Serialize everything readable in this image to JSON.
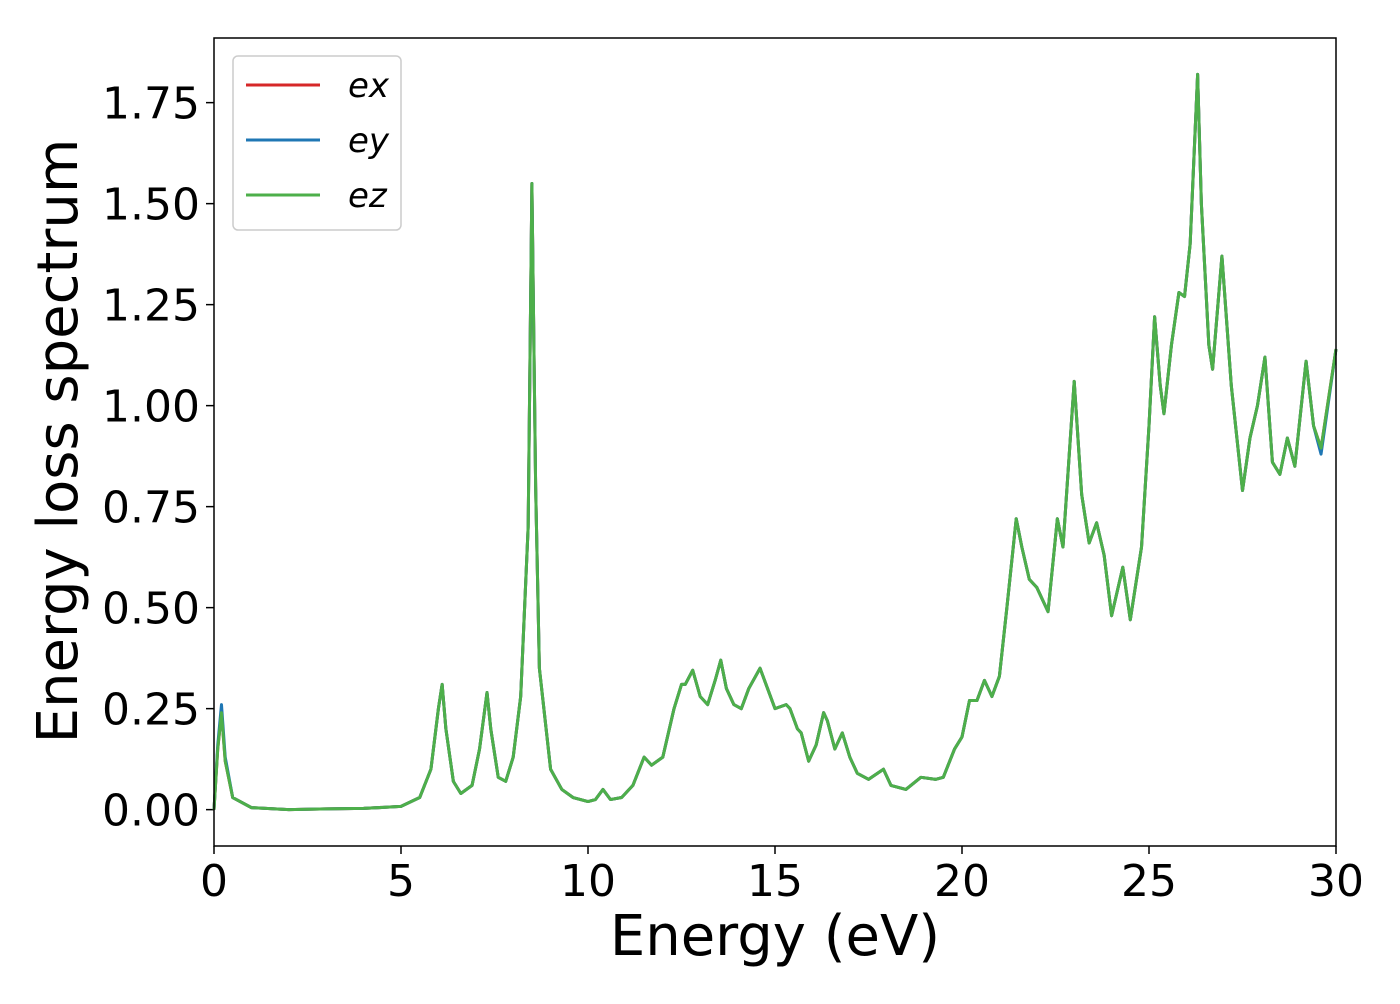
{
  "chart_data": {
    "type": "line",
    "xlabel": "Energy (eV)",
    "ylabel": "Energy loss spectrum",
    "xlim": [
      0,
      30
    ],
    "ylim": [
      -0.09,
      1.91
    ],
    "xticks": [
      0,
      5,
      10,
      15,
      20,
      25,
      30
    ],
    "yticks": [
      {
        "value": 0,
        "label": "0.00"
      },
      {
        "value": 0.25,
        "label": "0.25"
      },
      {
        "value": 0.5,
        "label": "0.50"
      },
      {
        "value": 0.75,
        "label": "0.75"
      },
      {
        "value": 1,
        "label": "1.00"
      },
      {
        "value": 1.25,
        "label": "1.25"
      },
      {
        "value": 1.5,
        "label": "1.50"
      },
      {
        "value": 1.75,
        "label": "1.75"
      }
    ],
    "legend": "upper left",
    "x": [
      0,
      0.1,
      0.2,
      0.3,
      0.5,
      1,
      2,
      3,
      4,
      5,
      5.5,
      5.8,
      6.0,
      6.1,
      6.2,
      6.4,
      6.6,
      6.9,
      7.1,
      7.3,
      7.4,
      7.6,
      7.8,
      8.0,
      8.2,
      8.4,
      8.5,
      8.6,
      8.7,
      9.0,
      9.3,
      9.6,
      10.0,
      10.2,
      10.4,
      10.6,
      10.9,
      11.2,
      11.5,
      11.7,
      12.0,
      12.3,
      12.5,
      12.6,
      12.8,
      13.0,
      13.2,
      13.4,
      13.55,
      13.7,
      13.9,
      14.1,
      14.3,
      14.6,
      14.8,
      15.0,
      15.3,
      15.4,
      15.6,
      15.7,
      15.9,
      16.1,
      16.3,
      16.4,
      16.6,
      16.8,
      17.0,
      17.2,
      17.5,
      17.9,
      18.1,
      18.5,
      18.9,
      19.3,
      19.5,
      19.8,
      20.0,
      20.2,
      20.4,
      20.6,
      20.8,
      21.0,
      21.2,
      21.45,
      21.6,
      21.8,
      22.0,
      22.3,
      22.55,
      22.7,
      23.0,
      23.2,
      23.4,
      23.6,
      23.8,
      24.0,
      24.3,
      24.5,
      24.8,
      25.0,
      25.15,
      25.3,
      25.4,
      25.6,
      25.8,
      25.95,
      26.1,
      26.3,
      26.4,
      26.6,
      26.7,
      26.95,
      27.2,
      27.5,
      27.7,
      27.9,
      28.1,
      28.3,
      28.5,
      28.7,
      28.9,
      29.2,
      29.4,
      29.6,
      30.0
    ],
    "series": [
      {
        "name": "ex",
        "color": "#d62728",
        "values": [
          0,
          0.15,
          0.24,
          0.12,
          0.03,
          0.005,
          0,
          0.002,
          0.003,
          0.008,
          0.03,
          0.1,
          0.25,
          0.31,
          0.2,
          0.07,
          0.04,
          0.06,
          0.15,
          0.29,
          0.2,
          0.08,
          0.07,
          0.13,
          0.28,
          0.7,
          1.55,
          0.8,
          0.35,
          0.1,
          0.05,
          0.03,
          0.02,
          0.025,
          0.05,
          0.025,
          0.03,
          0.06,
          0.13,
          0.11,
          0.13,
          0.25,
          0.31,
          0.31,
          0.345,
          0.28,
          0.26,
          0.32,
          0.37,
          0.3,
          0.26,
          0.25,
          0.3,
          0.35,
          0.3,
          0.25,
          0.26,
          0.25,
          0.2,
          0.19,
          0.12,
          0.16,
          0.24,
          0.22,
          0.15,
          0.19,
          0.13,
          0.09,
          0.075,
          0.1,
          0.06,
          0.05,
          0.08,
          0.075,
          0.08,
          0.15,
          0.18,
          0.27,
          0.27,
          0.32,
          0.28,
          0.33,
          0.5,
          0.72,
          0.65,
          0.57,
          0.55,
          0.49,
          0.72,
          0.65,
          1.06,
          0.78,
          0.66,
          0.71,
          0.63,
          0.48,
          0.6,
          0.47,
          0.65,
          0.95,
          1.22,
          1.05,
          0.98,
          1.15,
          1.28,
          1.27,
          1.4,
          1.82,
          1.5,
          1.15,
          1.09,
          1.37,
          1.05,
          0.79,
          0.92,
          1.0,
          1.12,
          0.86,
          0.83,
          0.92,
          0.85,
          1.11,
          0.95,
          0.895,
          1.14
        ]
      },
      {
        "name": "ey",
        "color": "#1f77b4",
        "values": [
          0,
          0.16,
          0.26,
          0.13,
          0.03,
          0.005,
          0,
          0.002,
          0.003,
          0.008,
          0.03,
          0.1,
          0.25,
          0.31,
          0.2,
          0.07,
          0.04,
          0.06,
          0.15,
          0.29,
          0.2,
          0.08,
          0.07,
          0.13,
          0.28,
          0.7,
          1.55,
          0.8,
          0.35,
          0.1,
          0.05,
          0.03,
          0.02,
          0.025,
          0.05,
          0.025,
          0.03,
          0.06,
          0.13,
          0.11,
          0.13,
          0.25,
          0.31,
          0.31,
          0.345,
          0.28,
          0.26,
          0.32,
          0.37,
          0.3,
          0.26,
          0.25,
          0.3,
          0.35,
          0.3,
          0.25,
          0.26,
          0.25,
          0.2,
          0.19,
          0.12,
          0.16,
          0.24,
          0.22,
          0.15,
          0.19,
          0.13,
          0.09,
          0.075,
          0.1,
          0.06,
          0.05,
          0.08,
          0.075,
          0.08,
          0.15,
          0.18,
          0.27,
          0.27,
          0.32,
          0.28,
          0.33,
          0.5,
          0.72,
          0.65,
          0.57,
          0.55,
          0.49,
          0.72,
          0.65,
          1.06,
          0.78,
          0.66,
          0.71,
          0.63,
          0.48,
          0.6,
          0.47,
          0.65,
          0.95,
          1.22,
          1.05,
          0.98,
          1.15,
          1.28,
          1.27,
          1.4,
          1.82,
          1.5,
          1.15,
          1.09,
          1.37,
          1.05,
          0.79,
          0.92,
          1.0,
          1.12,
          0.86,
          0.83,
          0.92,
          0.85,
          1.11,
          0.95,
          0.88,
          1.14
        ]
      },
      {
        "name": "ez",
        "color": "#4daf4a",
        "values": [
          0,
          0.15,
          0.24,
          0.12,
          0.03,
          0.005,
          0,
          0.002,
          0.003,
          0.008,
          0.03,
          0.1,
          0.25,
          0.31,
          0.2,
          0.07,
          0.04,
          0.06,
          0.15,
          0.29,
          0.2,
          0.08,
          0.07,
          0.13,
          0.28,
          0.7,
          1.55,
          0.8,
          0.35,
          0.1,
          0.05,
          0.03,
          0.02,
          0.025,
          0.05,
          0.025,
          0.03,
          0.06,
          0.13,
          0.11,
          0.13,
          0.25,
          0.31,
          0.31,
          0.345,
          0.28,
          0.26,
          0.32,
          0.37,
          0.3,
          0.26,
          0.25,
          0.3,
          0.35,
          0.3,
          0.25,
          0.26,
          0.25,
          0.2,
          0.19,
          0.12,
          0.16,
          0.24,
          0.22,
          0.15,
          0.19,
          0.13,
          0.09,
          0.075,
          0.1,
          0.06,
          0.05,
          0.08,
          0.075,
          0.08,
          0.15,
          0.18,
          0.27,
          0.27,
          0.32,
          0.28,
          0.33,
          0.5,
          0.72,
          0.65,
          0.57,
          0.55,
          0.49,
          0.72,
          0.65,
          1.06,
          0.78,
          0.66,
          0.71,
          0.63,
          0.48,
          0.6,
          0.47,
          0.65,
          0.95,
          1.22,
          1.05,
          0.98,
          1.15,
          1.28,
          1.27,
          1.4,
          1.82,
          1.5,
          1.15,
          1.09,
          1.37,
          1.05,
          0.79,
          0.92,
          1.0,
          1.12,
          0.86,
          0.83,
          0.92,
          0.85,
          1.11,
          0.95,
          0.895,
          1.14
        ]
      }
    ]
  }
}
